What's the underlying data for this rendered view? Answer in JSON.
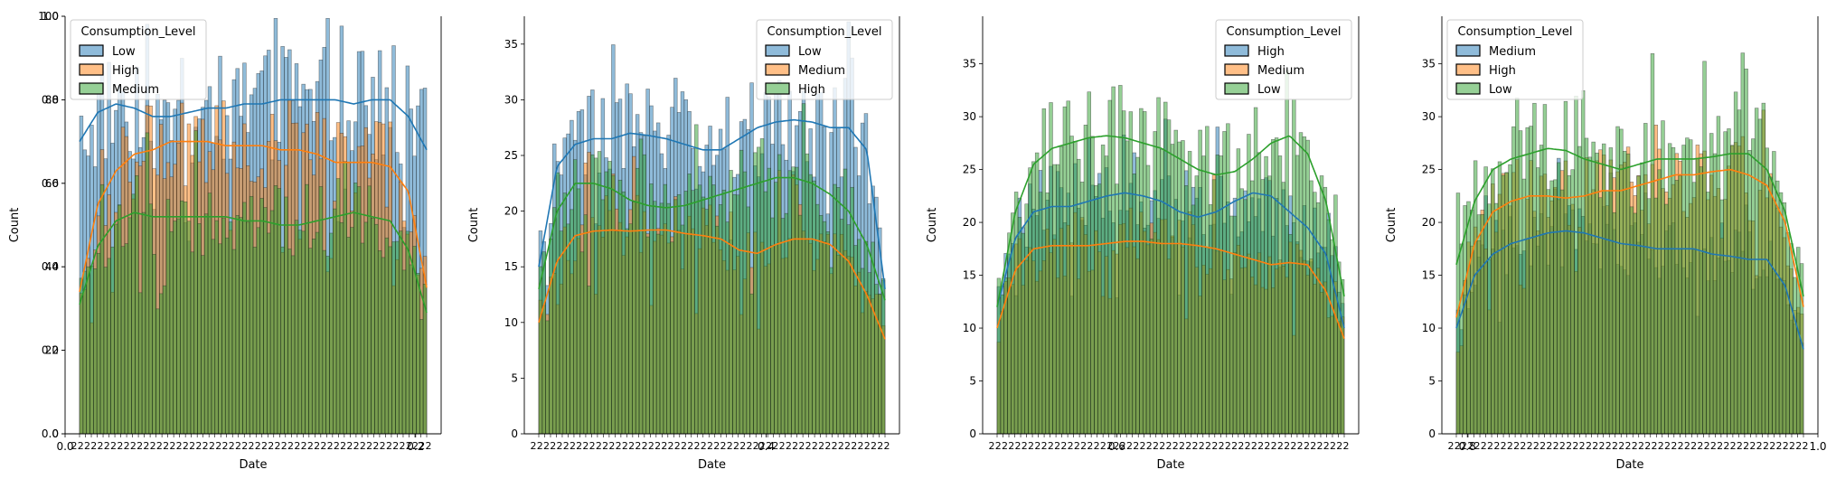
{
  "figure": {
    "background_axis": {
      "x_ticks": [
        "0.0",
        "0.2",
        "0.4",
        "0.6",
        "0.8",
        "1.0"
      ],
      "y_ticks": [
        "0.0",
        "0.2",
        "0.4",
        "0.6",
        "0.8",
        "1.0"
      ]
    },
    "colors": {
      "Low_p1": "#1f77b4",
      "High_p1": "#ff7f0e",
      "Medium_p1": "#2ca02c"
    }
  },
  "chart_data": [
    {
      "type": "histogram with kde",
      "xlabel": "Date",
      "ylabel": "Count",
      "ylim": [
        0,
        100
      ],
      "yticks": [
        0,
        20,
        40,
        60,
        80,
        100
      ],
      "legend_title": "Consumption_Level",
      "legend_position": "upper left",
      "series": [
        {
          "name": "Low",
          "color": "#1f77b4",
          "kde": [
            70,
            77,
            79,
            78,
            76,
            76,
            77,
            78,
            78,
            79,
            79,
            80,
            80,
            80,
            80,
            79,
            80,
            80,
            76,
            68
          ]
        },
        {
          "name": "High",
          "color": "#ff7f0e",
          "kde": [
            34,
            55,
            63,
            67,
            68,
            70,
            70,
            70,
            69,
            69,
            69,
            68,
            68,
            67,
            65,
            65,
            65,
            64,
            58,
            35
          ]
        },
        {
          "name": "Medium",
          "color": "#2ca02c",
          "kde": [
            31,
            45,
            51,
            53,
            52,
            52,
            52,
            52,
            52,
            51,
            51,
            50,
            50,
            51,
            52,
            53,
            52,
            51,
            44,
            29
          ]
        }
      ]
    },
    {
      "type": "histogram with kde",
      "xlabel": "Date",
      "ylabel": "Count",
      "ylim": [
        0,
        37.5
      ],
      "yticks": [
        0,
        5,
        10,
        15,
        20,
        25,
        30,
        35
      ],
      "legend_title": "Consumption_Level",
      "legend_position": "upper right",
      "series": [
        {
          "name": "Low",
          "color": "#1f77b4",
          "kde": [
            15,
            24,
            26,
            26.5,
            26.5,
            27,
            26.8,
            26.5,
            26,
            25.5,
            25.5,
            26.5,
            27.5,
            28,
            28.2,
            28,
            27.5,
            27.5,
            25.5,
            13
          ]
        },
        {
          "name": "Medium",
          "color": "#ff7f0e",
          "kde": [
            10,
            15.5,
            17.8,
            18.2,
            18.3,
            18.2,
            18.3,
            18.3,
            18,
            17.8,
            17.5,
            16.5,
            16.2,
            17,
            17.5,
            17.5,
            17,
            15.5,
            12.5,
            8.5
          ]
        },
        {
          "name": "High",
          "color": "#2ca02c",
          "kde": [
            13,
            20,
            22.5,
            22.5,
            22,
            21,
            20.5,
            20.3,
            20.5,
            21,
            21.5,
            22,
            22.5,
            23,
            23,
            22.5,
            21.5,
            20,
            17,
            12
          ]
        }
      ]
    },
    {
      "type": "histogram with kde",
      "xlabel": "Date",
      "ylabel": "Count",
      "ylim": [
        0,
        39.5
      ],
      "yticks": [
        0,
        5,
        10,
        15,
        20,
        25,
        30,
        35
      ],
      "legend_title": "Consumption_Level",
      "legend_position": "upper right",
      "series": [
        {
          "name": "High",
          "color": "#1f77b4",
          "kde": [
            12,
            18.5,
            21,
            21.5,
            21.5,
            22,
            22.5,
            22.8,
            22.5,
            22,
            21,
            20.5,
            21,
            22,
            22.8,
            22.5,
            21,
            19.5,
            17,
            10
          ]
        },
        {
          "name": "Medium",
          "color": "#ff7f0e",
          "kde": [
            10,
            15.5,
            17.5,
            17.8,
            17.8,
            17.8,
            18,
            18.2,
            18.2,
            18,
            18,
            17.8,
            17.5,
            17,
            16.5,
            16,
            16.2,
            16,
            13.5,
            9
          ]
        },
        {
          "name": "Low",
          "color": "#2ca02c",
          "kde": [
            12,
            21,
            25.5,
            27,
            27.5,
            28,
            28.2,
            28,
            27.5,
            27,
            26,
            25,
            24.5,
            24.8,
            26,
            27.5,
            28.2,
            26.5,
            22,
            13
          ]
        }
      ]
    },
    {
      "type": "histogram with kde",
      "xlabel": "Date",
      "ylabel": "Count",
      "ylim": [
        0,
        39.5
      ],
      "yticks": [
        0,
        5,
        10,
        15,
        20,
        25,
        30,
        35
      ],
      "legend_title": "Consumption_Level",
      "legend_position": "upper left",
      "series": [
        {
          "name": "Medium",
          "color": "#1f77b4",
          "kde": [
            10,
            15,
            17,
            18,
            18.5,
            19,
            19.2,
            19,
            18.5,
            18,
            17.8,
            17.5,
            17.5,
            17.5,
            17,
            16.8,
            16.5,
            16.5,
            14,
            8
          ]
        },
        {
          "name": "High",
          "color": "#ff7f0e",
          "kde": [
            11,
            18,
            21,
            22,
            22.5,
            22.5,
            22.3,
            22.5,
            23,
            23,
            23.5,
            24,
            24.5,
            24.5,
            24.8,
            25,
            24.5,
            23.5,
            20,
            12
          ]
        },
        {
          "name": "Low",
          "color": "#2ca02c",
          "kde": [
            16,
            22,
            25,
            26,
            26.5,
            27,
            26.8,
            26,
            25.5,
            25,
            25.5,
            26,
            26,
            26,
            26.2,
            26.5,
            26.5,
            25,
            21,
            13
          ]
        }
      ]
    }
  ]
}
